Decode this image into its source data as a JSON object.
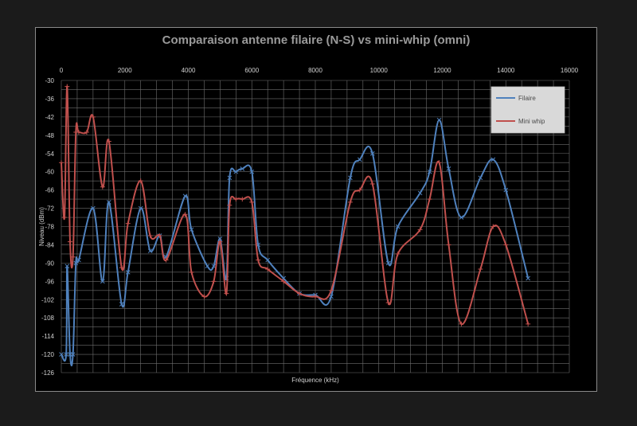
{
  "chart_data": {
    "type": "line",
    "title": "Comparaison antenne filaire (N-S) vs mini-whip (omni)",
    "xlabel": "Fréquence (kHz)",
    "ylabel": "Niveau (dBm)",
    "xlim": [
      0,
      16000
    ],
    "ylim": [
      -126,
      -30
    ],
    "x_ticks": [
      "0",
      "2000",
      "4000",
      "6000",
      "8000",
      "10000",
      "12000",
      "14000",
      "16000"
    ],
    "y_ticks": [
      "-30",
      "-36",
      "-42",
      "-48",
      "-54",
      "-60",
      "-66",
      "-72",
      "-78",
      "-84",
      "-90",
      "-96",
      "-102",
      "-108",
      "-114",
      "-120",
      "-126"
    ],
    "x_axis_position": "top",
    "grid": true,
    "legend_position": "top-right",
    "series": [
      {
        "name": "Filaire",
        "color": "#4f81bd",
        "marker": "x",
        "x": [
          0,
          153,
          183,
          275,
          367,
          458,
          550,
          1000,
          1300,
          1500,
          1900,
          2100,
          2500,
          2800,
          3100,
          3300,
          3900,
          4100,
          4600,
          4800,
          5000,
          5200,
          5300,
          5500,
          5700,
          6000,
          6200,
          6500,
          7000,
          7500,
          8000,
          8500,
          9100,
          9400,
          9800,
          10300,
          10600,
          11300,
          11600,
          11900,
          12200,
          12600,
          13200,
          13600,
          14000,
          14700
        ],
        "y": [
          -120,
          -120,
          -91,
          -120,
          -120,
          -90,
          -89,
          -72,
          -96,
          -70,
          -103.5,
          -93,
          -72,
          -86,
          -81,
          -88,
          -68,
          -79,
          -91,
          -91,
          -82,
          -95,
          -62,
          -60,
          -59,
          -60,
          -84,
          -89,
          -95,
          -100,
          -100.5,
          -101,
          -62,
          -56,
          -54,
          -90,
          -78,
          -67,
          -60,
          -43,
          -59,
          -75,
          -62,
          -56,
          -66,
          -95
        ]
      },
      {
        "name": "Mini whip",
        "color": "#c0504d",
        "marker": "+",
        "x": [
          0,
          100,
          183,
          275,
          367,
          458,
          550,
          800,
          1000,
          1300,
          1500,
          1900,
          2100,
          2500,
          2800,
          3100,
          3300,
          3900,
          4100,
          4500,
          4800,
          5000,
          5200,
          5300,
          5500,
          5700,
          6000,
          6200,
          6500,
          7000,
          7500,
          8000,
          8500,
          9100,
          9400,
          9800,
          10300,
          10600,
          11300,
          11600,
          11900,
          12200,
          12600,
          13200,
          13600,
          14000,
          14700
        ],
        "y": [
          -57,
          -75,
          -32,
          -83,
          -88,
          -47,
          -47,
          -47,
          -42,
          -65,
          -50,
          -91.5,
          -77,
          -63,
          -81,
          -81,
          -89,
          -74,
          -93,
          -101,
          -96,
          -83,
          -100,
          -71,
          -69,
          -69,
          -70,
          -89,
          -92,
          -96,
          -100,
          -101,
          -99,
          -70,
          -66,
          -64,
          -103,
          -87,
          -79,
          -69,
          -57,
          -84,
          -110,
          -92,
          -78,
          -84,
          -110
        ]
      }
    ]
  }
}
